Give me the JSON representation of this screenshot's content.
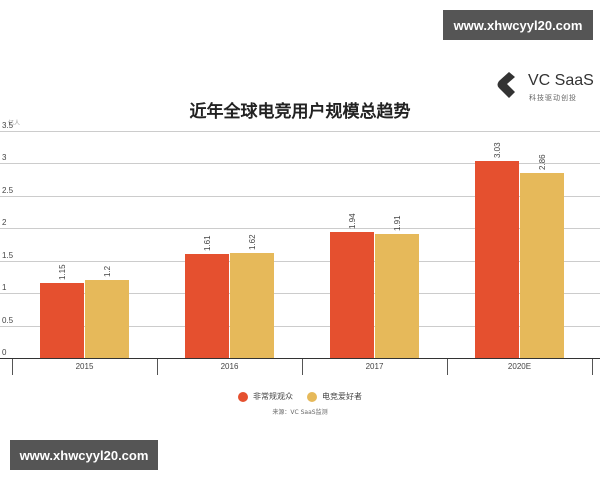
{
  "watermarks": {
    "top": "www.xhwcyyl20.com",
    "bottom": "www.xhwcyyl20.com"
  },
  "logo": {
    "name": "VC SaaS",
    "tagline": "科技驱动创投"
  },
  "colors": {
    "series1": "#E5502F",
    "series2": "#E6B95A",
    "grid": "#cccccc",
    "watermark_bg": "#555555"
  },
  "chart_data": {
    "type": "bar",
    "title": "近年全球电竞用户规模总趋势",
    "unit_label": "亿人",
    "xlabel": "",
    "ylabel": "亿人",
    "ylim": [
      0,
      3.5
    ],
    "yticks": [
      "0",
      "0.5",
      "1",
      "1.5",
      "2",
      "2.5",
      "3",
      "3.5"
    ],
    "grid": true,
    "legend_position": "bottom",
    "categories": [
      "2015",
      "2016",
      "2017",
      "2020E"
    ],
    "series": [
      {
        "name": "非常规观众",
        "color": "#E5502F",
        "values": [
          1.15,
          1.61,
          1.94,
          3.03
        ],
        "labels": [
          "1.15",
          "1.61",
          "1.94",
          "3.03"
        ]
      },
      {
        "name": "电竞爱好者",
        "color": "#E6B95A",
        "values": [
          1.2,
          1.62,
          1.91,
          2.86
        ],
        "labels": [
          "1.2",
          "1.62",
          "1.91",
          "2.86"
        ]
      }
    ],
    "source": "来源：VC SaaS监测"
  }
}
